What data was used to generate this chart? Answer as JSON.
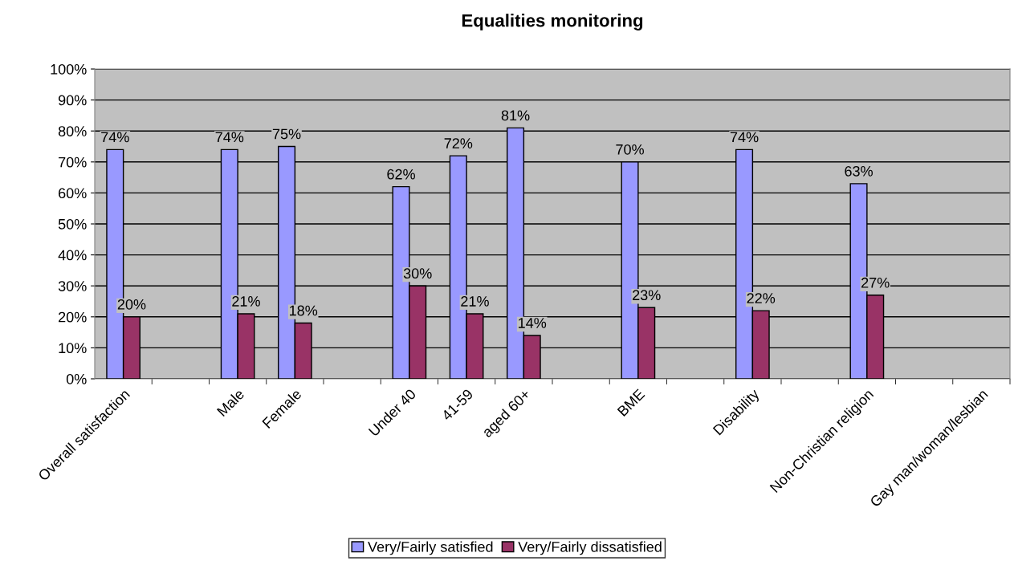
{
  "chart_data": {
    "type": "bar",
    "title": "Equalities monitoring",
    "categories": [
      "Overall satisfaction",
      null,
      "Male",
      "Female",
      null,
      "Under 40",
      "41-59",
      "aged 60+",
      null,
      "BME",
      null,
      "Disability",
      null,
      "Non-Christian religion",
      null,
      "Gay man/woman/lesbian"
    ],
    "series": [
      {
        "name": "Very/Fairly satisfied",
        "color": "#9999ff",
        "values": [
          74,
          null,
          74,
          75,
          null,
          62,
          72,
          81,
          null,
          70,
          null,
          74,
          null,
          63,
          null,
          null
        ],
        "value_labels": [
          "74%",
          null,
          "74%",
          "75%",
          null,
          "62%",
          "72%",
          "81%",
          null,
          "70%",
          null,
          "74%",
          null,
          "63%",
          null,
          null
        ]
      },
      {
        "name": "Very/Fairly dissatisfied",
        "color": "#993366",
        "values": [
          20,
          null,
          21,
          18,
          null,
          30,
          21,
          14,
          null,
          23,
          null,
          22,
          null,
          27,
          null,
          null
        ],
        "value_labels": [
          "20%",
          null,
          "21%",
          "18%",
          null,
          "30%",
          "21%",
          "14%",
          null,
          "23%",
          null,
          "22%",
          null,
          "27%",
          null,
          null
        ]
      }
    ],
    "ylim": [
      0,
      100
    ],
    "yticks": [
      {
        "value": 0,
        "label": "0%"
      },
      {
        "value": 10,
        "label": "10%"
      },
      {
        "value": 20,
        "label": "20%"
      },
      {
        "value": 30,
        "label": "30%"
      },
      {
        "value": 40,
        "label": "40%"
      },
      {
        "value": 50,
        "label": "50%"
      },
      {
        "value": 60,
        "label": "60%"
      },
      {
        "value": 70,
        "label": "70%"
      },
      {
        "value": 80,
        "label": "80%"
      },
      {
        "value": 90,
        "label": "90%"
      },
      {
        "value": 100,
        "label": "100%"
      }
    ],
    "grid": "y",
    "legend": "bottom"
  }
}
